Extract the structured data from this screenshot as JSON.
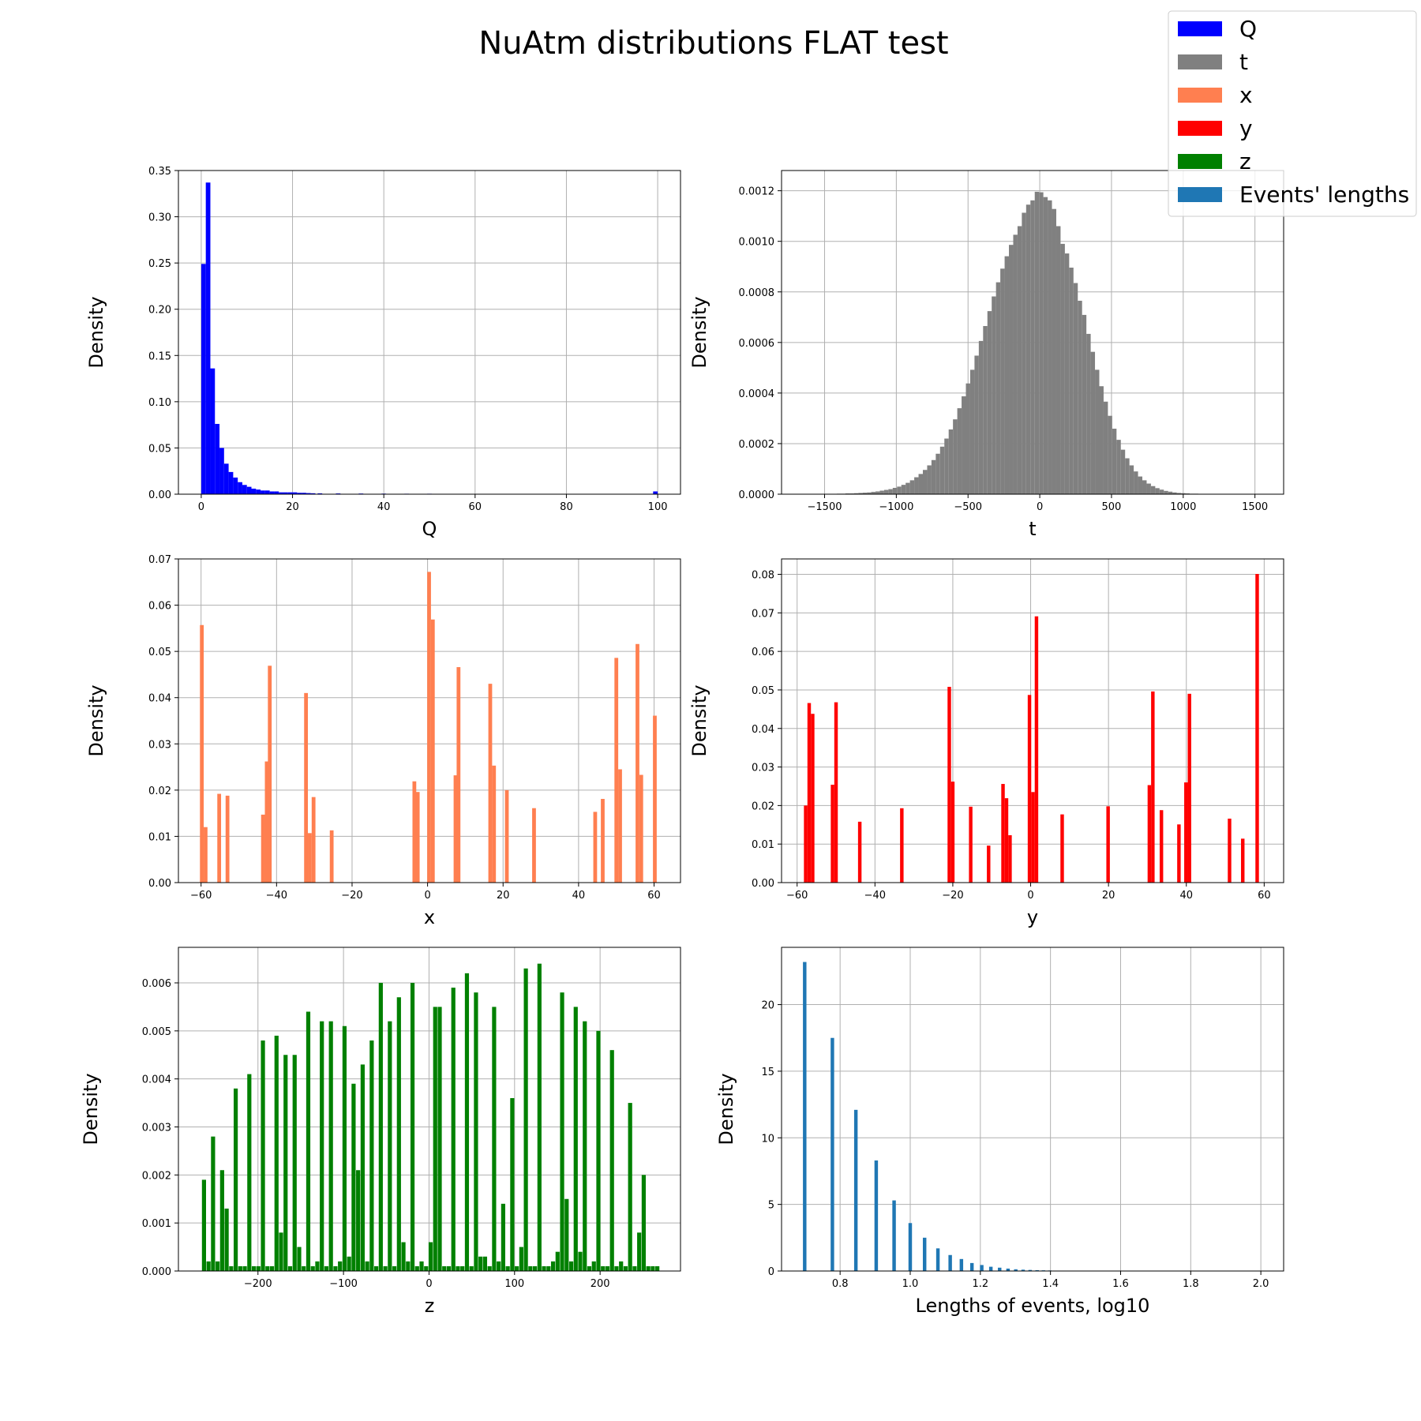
{
  "figure": {
    "title": "NuAtm distributions FLAT test"
  },
  "legend": {
    "placement": "top-right",
    "entries": [
      {
        "label": "Q",
        "color": "#0000ff"
      },
      {
        "label": "t",
        "color": "#808080"
      },
      {
        "label": "x",
        "color": "#ff7f50"
      },
      {
        "label": "y",
        "color": "#ff0000"
      },
      {
        "label": "z",
        "color": "#008000"
      },
      {
        "label": "Events' lengths",
        "color": "#1f77b4"
      }
    ]
  },
  "chart_data": [
    {
      "type": "bar",
      "series_name": "Q",
      "color": "#0000ff",
      "xlabel": "Q",
      "ylabel": "Density",
      "grid": true,
      "xlim": [
        -5,
        105
      ],
      "ylim": [
        0,
        0.35
      ],
      "xticks": [
        0,
        20,
        40,
        60,
        80,
        100
      ],
      "xtick_labels": [
        "0",
        "20",
        "40",
        "60",
        "80",
        "100"
      ],
      "yticks": [
        0,
        0.05,
        0.1,
        0.15,
        0.2,
        0.25,
        0.3,
        0.35
      ],
      "ytick_labels": [
        "0.00",
        "0.05",
        "0.10",
        "0.15",
        "0.20",
        "0.25",
        "0.30",
        "0.35"
      ],
      "bar_width": 1.0,
      "x": [
        0.5,
        1.5,
        2.5,
        3.5,
        4.5,
        5.5,
        6.5,
        7.5,
        8.5,
        9.5,
        10.5,
        11.5,
        12.5,
        13.5,
        14.5,
        15.5,
        16.5,
        17.5,
        18.5,
        19.5,
        20.5,
        21.5,
        22.5,
        23.5,
        24.5,
        26,
        30,
        35,
        40,
        45,
        50,
        55,
        99.5
      ],
      "values": [
        0.249,
        0.337,
        0.136,
        0.076,
        0.05,
        0.033,
        0.024,
        0.018,
        0.013,
        0.01,
        0.008,
        0.006,
        0.005,
        0.004,
        0.004,
        0.003,
        0.003,
        0.002,
        0.002,
        0.002,
        0.002,
        0.0015,
        0.0015,
        0.0012,
        0.001,
        0.0009,
        0.0008,
        0.0007,
        0.0006,
        0.0005,
        0.0005,
        0.0004,
        0.003
      ]
    },
    {
      "type": "bar",
      "series_name": "t",
      "color": "#808080",
      "xlabel": "t",
      "ylabel": "Density",
      "grid": true,
      "xlim": [
        -1800,
        1700
      ],
      "ylim": [
        0,
        0.00128
      ],
      "xticks": [
        -1500,
        -1000,
        -500,
        0,
        500,
        1000,
        1500
      ],
      "xtick_labels": [
        "−1500",
        "−1000",
        "−500",
        "0",
        "500",
        "1000",
        "1500"
      ],
      "yticks": [
        0,
        0.0002,
        0.0004,
        0.0006,
        0.0008,
        0.001,
        0.0012
      ],
      "ytick_labels": [
        "0.0000",
        "0.0002",
        "0.0004",
        "0.0006",
        "0.0008",
        "0.0010",
        "0.0012"
      ],
      "bar_width": 30,
      "x": [
        -1400,
        -1370,
        -1340,
        -1310,
        -1280,
        -1250,
        -1220,
        -1190,
        -1160,
        -1130,
        -1100,
        -1070,
        -1040,
        -1010,
        -980,
        -950,
        -920,
        -890,
        -860,
        -830,
        -800,
        -770,
        -740,
        -710,
        -680,
        -650,
        -620,
        -590,
        -560,
        -530,
        -500,
        -470,
        -440,
        -410,
        -380,
        -350,
        -320,
        -290,
        -260,
        -230,
        -200,
        -170,
        -140,
        -110,
        -80,
        -50,
        -20,
        10,
        40,
        70,
        100,
        130,
        160,
        190,
        220,
        250,
        280,
        310,
        340,
        370,
        400,
        430,
        460,
        490,
        520,
        550,
        580,
        610,
        640,
        670,
        700,
        730,
        760,
        790,
        820,
        850,
        880,
        910,
        940,
        970,
        1000,
        1030,
        1060,
        1090,
        1120,
        1150,
        1180,
        1210,
        1240,
        1270,
        1300,
        1330,
        1360,
        1390,
        1420,
        1450
      ],
      "values": [
        2e-06,
        2e-06,
        3e-06,
        3e-06,
        4e-06,
        5e-06,
        6e-06,
        7e-06,
        9e-06,
        1.1e-05,
        1.4e-05,
        1.7e-05,
        2e-05,
        2.5e-05,
        3e-05,
        3.7e-05,
        4.5e-05,
        5.5e-05,
        6.7e-05,
        8e-05,
        9.6e-05,
        0.000114,
        0.000135,
        0.00016,
        0.000188,
        0.00022,
        0.000256,
        0.000296,
        0.00034,
        0.000387,
        0.000438,
        0.000492,
        0.000548,
        0.000606,
        0.000665,
        0.000724,
        0.000782,
        0.000838,
        0.000892,
        0.000941,
        0.000986,
        0.001026,
        0.00106,
        0.001113,
        0.001145,
        0.001162,
        0.001196,
        0.001194,
        0.001175,
        0.001162,
        0.001128,
        0.00106,
        0.00099,
        0.000952,
        0.000896,
        0.000835,
        0.000765,
        0.000709,
        0.000634,
        0.000563,
        0.000492,
        0.000427,
        0.000366,
        0.00031,
        0.000259,
        0.000215,
        0.000176,
        0.000142,
        0.000114,
        9e-05,
        7e-05,
        5.5e-05,
        4.2e-05,
        3.2e-05,
        2.4e-05,
        1.8e-05,
        1.3e-05,
        1e-05,
        7e-06,
        5e-06,
        4e-06,
        3e-06,
        2e-06,
        2e-06,
        1e-06,
        1e-06,
        1e-06,
        1e-06,
        1e-06,
        1e-06,
        1e-06,
        1e-06,
        1e-06,
        1e-06,
        1e-06,
        1e-06
      ]
    },
    {
      "type": "bar",
      "series_name": "x",
      "color": "#ff7f50",
      "xlabel": "x",
      "ylabel": "Density",
      "grid": true,
      "xlim": [
        -66,
        67
      ],
      "ylim": [
        0,
        0.07
      ],
      "xticks": [
        -60,
        -40,
        -20,
        0,
        20,
        40,
        60
      ],
      "xtick_labels": [
        "−60",
        "−40",
        "−20",
        "0",
        "20",
        "40",
        "60"
      ],
      "yticks": [
        0,
        0.01,
        0.02,
        0.03,
        0.04,
        0.05,
        0.06,
        0.07
      ],
      "ytick_labels": [
        "0.00",
        "0.01",
        "0.02",
        "0.03",
        "0.04",
        "0.05",
        "0.06",
        "0.07"
      ],
      "bar_width": 1.0,
      "x": [
        -59.8,
        -58.8,
        -55.2,
        -53.0,
        -43.6,
        -42.6,
        -41.8,
        -32.2,
        -31.2,
        -30.2,
        -25.4,
        -3.5,
        -2.6,
        0.4,
        1.4,
        7.4,
        8.2,
        16.6,
        17.6,
        21.0,
        28.2,
        44.4,
        46.4,
        50.0,
        51.0,
        55.6,
        56.6,
        60.2
      ],
      "values": [
        0.0557,
        0.012,
        0.0192,
        0.0188,
        0.0147,
        0.0262,
        0.0469,
        0.041,
        0.0107,
        0.0185,
        0.0113,
        0.0219,
        0.0196,
        0.0672,
        0.0569,
        0.0232,
        0.0466,
        0.043,
        0.0253,
        0.02,
        0.0161,
        0.0153,
        0.0181,
        0.0486,
        0.0245,
        0.0516,
        0.0233,
        0.0361
      ]
    },
    {
      "type": "bar",
      "series_name": "y",
      "color": "#ff0000",
      "xlabel": "y",
      "ylabel": "Density",
      "grid": true,
      "xlim": [
        -64,
        65
      ],
      "ylim": [
        0,
        0.084
      ],
      "xticks": [
        -60,
        -40,
        -20,
        0,
        20,
        40,
        60
      ],
      "xtick_labels": [
        "−60",
        "−40",
        "−20",
        "0",
        "20",
        "40",
        "60"
      ],
      "yticks": [
        0,
        0.01,
        0.02,
        0.03,
        0.04,
        0.05,
        0.06,
        0.07,
        0.08
      ],
      "ytick_labels": [
        "0.00",
        "0.01",
        "0.02",
        "0.03",
        "0.04",
        "0.05",
        "0.06",
        "0.07",
        "0.08"
      ],
      "bar_width": 0.9,
      "x": [
        -57.8,
        -56.9,
        -56.0,
        -50.9,
        -50.0,
        -43.9,
        -33.1,
        -20.9,
        -20.0,
        -15.4,
        -10.8,
        -7.1,
        -6.2,
        -5.3,
        -0.3,
        0.6,
        1.5,
        8.1,
        19.9,
        30.5,
        31.4,
        33.6,
        38.1,
        39.9,
        40.8,
        51.1,
        54.5,
        58.2
      ],
      "values": [
        0.02,
        0.0466,
        0.0438,
        0.0254,
        0.0468,
        0.0158,
        0.0193,
        0.0508,
        0.0262,
        0.0197,
        0.0096,
        0.0256,
        0.0219,
        0.0123,
        0.0487,
        0.0235,
        0.0691,
        0.0177,
        0.0198,
        0.0253,
        0.0496,
        0.0188,
        0.0151,
        0.026,
        0.049,
        0.0166,
        0.0114,
        0.0801
      ]
    },
    {
      "type": "bar",
      "series_name": "z",
      "color": "#008000",
      "xlabel": "z",
      "ylabel": "Density",
      "grid": true,
      "xlim": [
        -293,
        294
      ],
      "ylim": [
        0,
        0.00674
      ],
      "xticks": [
        -200,
        -100,
        0,
        100,
        200
      ],
      "xtick_labels": [
        "−200",
        "−100",
        "0",
        "100",
        "200"
      ],
      "yticks": [
        0,
        0.001,
        0.002,
        0.003,
        0.004,
        0.005,
        0.006
      ],
      "ytick_labels": [
        "0.000",
        "0.001",
        "0.002",
        "0.003",
        "0.004",
        "0.005",
        "0.006"
      ],
      "bar_width": 4.8,
      "x": [
        -263.1,
        -257.8,
        -252.5,
        -247.2,
        -241.9,
        -236.6,
        -231.3,
        -226.0,
        -220.7,
        -215.4,
        -210.1,
        -204.8,
        -199.5,
        -194.2,
        -188.9,
        -183.6,
        -178.3,
        -173.0,
        -167.7,
        -162.4,
        -157.1,
        -151.8,
        -146.5,
        -141.2,
        -135.9,
        -130.6,
        -125.3,
        -120.0,
        -114.7,
        -109.4,
        -104.1,
        -98.8,
        -93.5,
        -88.2,
        -82.9,
        -77.6,
        -72.3,
        -67.0,
        -61.7,
        -56.4,
        -51.1,
        -45.8,
        -40.5,
        -35.2,
        -29.9,
        -24.6,
        -19.3,
        -14.0,
        -8.7,
        -3.4,
        1.9,
        7.2,
        12.5,
        17.8,
        23.1,
        28.4,
        33.7,
        39.0,
        44.3,
        49.6,
        54.9,
        60.2,
        65.5,
        70.8,
        76.1,
        81.4,
        86.7,
        92.0,
        97.3,
        102.6,
        107.9,
        113.2,
        118.5,
        123.8,
        129.1,
        134.4,
        139.7,
        145.0,
        150.3,
        155.6,
        160.9,
        166.2,
        171.5,
        176.8,
        182.1,
        187.4,
        192.7,
        198.0,
        203.3,
        208.6,
        213.9,
        219.2,
        224.5,
        229.8,
        235.1,
        240.4,
        245.7,
        251.0,
        256.3,
        261.6,
        266.9
      ],
      "values": [
        0.0019,
        0.0002,
        0.0028,
        0.0002,
        0.0021,
        0.0013,
        0.0001,
        0.0038,
        0.0001,
        0.0001,
        0.0041,
        0.0001,
        0.0001,
        0.0048,
        0.0001,
        0.0001,
        0.0049,
        0.0008,
        0.0045,
        0.0001,
        0.0045,
        0.0005,
        0.0001,
        0.0054,
        0.0001,
        0.0002,
        0.0052,
        0.0001,
        0.0052,
        0.0001,
        0.0002,
        0.0051,
        0.0003,
        0.0039,
        0.0021,
        0.0043,
        0.0002,
        0.0048,
        0.0001,
        0.006,
        0.0001,
        0.0052,
        0.0001,
        0.0057,
        0.0006,
        0.0002,
        0.006,
        0.0001,
        0.0002,
        0.0001,
        0.0006,
        0.0055,
        0.0055,
        0.0001,
        0.0001,
        0.0059,
        0.0001,
        0.0001,
        0.0062,
        0.0001,
        0.0058,
        0.0003,
        0.0003,
        0.0001,
        0.0055,
        0.0002,
        0.0014,
        0.0001,
        0.0036,
        0.0001,
        0.0005,
        0.0063,
        0.0001,
        0.0001,
        0.0064,
        0.0001,
        0.0001,
        0.0002,
        0.0004,
        0.0058,
        0.0015,
        0.0002,
        0.0055,
        0.0004,
        0.0052,
        0.0001,
        0.0002,
        0.005,
        0.0001,
        0.0001,
        0.0046,
        0.0001,
        0.0002,
        0.0001,
        0.0035,
        0.0001,
        0.0008,
        0.002,
        0.0001,
        0.0001,
        0.0001
      ]
    },
    {
      "type": "bar",
      "series_name": "Events' lengths",
      "color": "#1f77b4",
      "xlabel": "Lengths of events, log10",
      "ylabel": "Density",
      "grid": true,
      "xlim": [
        0.633,
        2.065
      ],
      "ylim": [
        0,
        24.3
      ],
      "xticks": [
        0.8,
        1.0,
        1.2,
        1.4,
        1.6,
        1.8,
        2.0
      ],
      "xtick_labels": [
        "0.8",
        "1.0",
        "1.2",
        "1.4",
        "1.6",
        "1.8",
        "2.0"
      ],
      "yticks": [
        0,
        5,
        10,
        15,
        20
      ],
      "ytick_labels": [
        "0",
        "5",
        "10",
        "15",
        "20"
      ],
      "bar_width": 0.01,
      "x": [
        0.699,
        0.778,
        0.845,
        0.903,
        0.954,
        1.0,
        1.041,
        1.079,
        1.114,
        1.146,
        1.176,
        1.204,
        1.23,
        1.255,
        1.279,
        1.301,
        1.322,
        1.342,
        1.362,
        1.38,
        1.398
      ],
      "values": [
        23.2,
        17.5,
        12.1,
        8.3,
        5.3,
        3.6,
        2.5,
        1.7,
        1.2,
        0.9,
        0.6,
        0.45,
        0.32,
        0.25,
        0.18,
        0.13,
        0.1,
        0.08,
        0.06,
        0.05,
        0.04
      ]
    }
  ]
}
